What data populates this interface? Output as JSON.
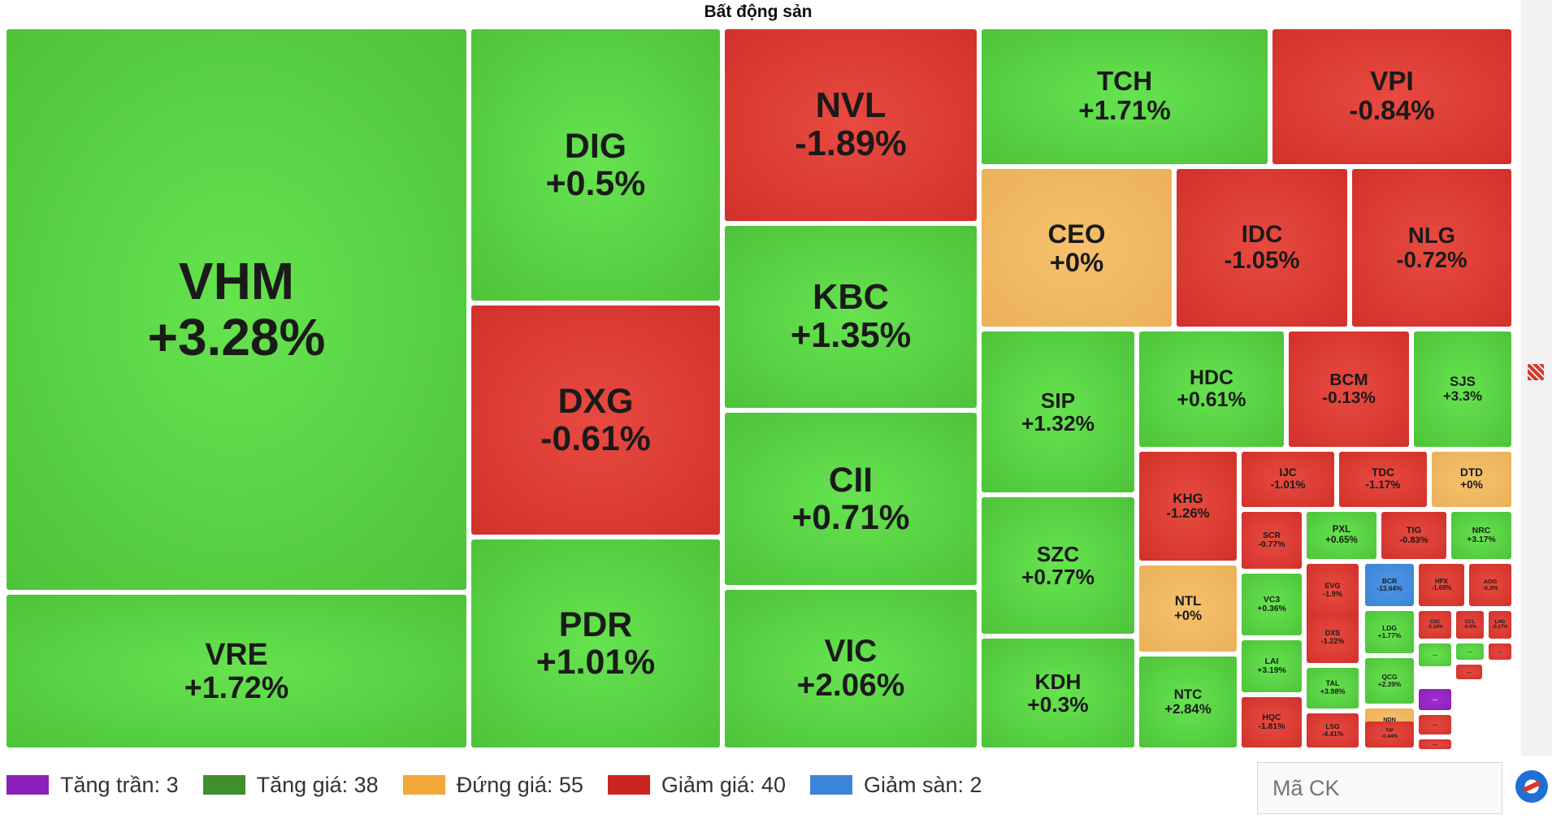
{
  "chart_data": {
    "type": "treemap",
    "title": "Bất động sản",
    "series": [
      {
        "symbol": "VHM",
        "change": "+3.28%",
        "status": "up"
      },
      {
        "symbol": "VRE",
        "change": "+1.72%",
        "status": "up"
      },
      {
        "symbol": "DIG",
        "change": "+0.5%",
        "status": "up"
      },
      {
        "symbol": "DXG",
        "change": "-0.61%",
        "status": "down"
      },
      {
        "symbol": "PDR",
        "change": "+1.01%",
        "status": "up"
      },
      {
        "symbol": "NVL",
        "change": "-1.89%",
        "status": "down"
      },
      {
        "symbol": "KBC",
        "change": "+1.35%",
        "status": "up"
      },
      {
        "symbol": "CII",
        "change": "+0.71%",
        "status": "up"
      },
      {
        "symbol": "VIC",
        "change": "+2.06%",
        "status": "up"
      },
      {
        "symbol": "TCH",
        "change": "+1.71%",
        "status": "up"
      },
      {
        "symbol": "VPI",
        "change": "-0.84%",
        "status": "down"
      },
      {
        "symbol": "CEO",
        "change": "+0%",
        "status": "flat"
      },
      {
        "symbol": "IDC",
        "change": "-1.05%",
        "status": "down"
      },
      {
        "symbol": "NLG",
        "change": "-0.72%",
        "status": "down"
      },
      {
        "symbol": "SIP",
        "change": "+1.32%",
        "status": "up"
      },
      {
        "symbol": "SZC",
        "change": "+0.77%",
        "status": "up"
      },
      {
        "symbol": "KDH",
        "change": "+0.3%",
        "status": "up"
      },
      {
        "symbol": "HDC",
        "change": "+0.61%",
        "status": "up"
      },
      {
        "symbol": "BCM",
        "change": "-0.13%",
        "status": "down"
      },
      {
        "symbol": "SJS",
        "change": "+3.3%",
        "status": "up"
      },
      {
        "symbol": "KHG",
        "change": "-1.26%",
        "status": "down"
      },
      {
        "symbol": "NTL",
        "change": "+0%",
        "status": "flat"
      },
      {
        "symbol": "NTC",
        "change": "+2.84%",
        "status": "up"
      },
      {
        "symbol": "IJC",
        "change": "-1.01%",
        "status": "down"
      },
      {
        "symbol": "TDC",
        "change": "-1.17%",
        "status": "down"
      },
      {
        "symbol": "DTD",
        "change": "+0%",
        "status": "flat"
      },
      {
        "symbol": "SCR",
        "change": "-0.77%",
        "status": "down"
      },
      {
        "symbol": "PXL",
        "change": "+0.65%",
        "status": "up"
      },
      {
        "symbol": "TIG",
        "change": "-0.83%",
        "status": "down"
      },
      {
        "symbol": "NRC",
        "change": "+3.17%",
        "status": "up"
      },
      {
        "symbol": "VC3",
        "change": "+0.36%",
        "status": "up"
      },
      {
        "symbol": "EVG",
        "change": "-1.9%",
        "status": "down"
      },
      {
        "symbol": "BCR",
        "change": "-13.64%",
        "status": "floor"
      },
      {
        "symbol": "HPX",
        "change": "-1.69%",
        "status": "down"
      },
      {
        "symbol": "AGG",
        "change": "-0.3%",
        "status": "down"
      },
      {
        "symbol": "LAI",
        "change": "+3.19%",
        "status": "up"
      },
      {
        "symbol": "DXS",
        "change": "-1.22%",
        "status": "down"
      },
      {
        "symbol": "LDG",
        "change": "+1.77%",
        "status": "up"
      },
      {
        "symbol": "CDC",
        "change": "-3.16%",
        "status": "down"
      },
      {
        "symbol": "CCL",
        "change": "-0.6%",
        "status": "down"
      },
      {
        "symbol": "LHG",
        "change": "-0.27%",
        "status": "down"
      },
      {
        "symbol": "HQC",
        "change": "-1.81%",
        "status": "down"
      },
      {
        "symbol": "TAL",
        "change": "+3.98%",
        "status": "up"
      },
      {
        "symbol": "QCG",
        "change": "+2.39%",
        "status": "up"
      },
      {
        "symbol": "NDN",
        "change": "+0%",
        "status": "flat"
      },
      {
        "symbol": "LSG",
        "change": "-4.41%",
        "status": "down"
      },
      {
        "symbol": "TIP",
        "change": "-0.44%",
        "status": "down"
      }
    ],
    "small_cells": [
      {
        "symbol": "...",
        "status": "up"
      },
      {
        "symbol": "...",
        "status": "up"
      },
      {
        "symbol": "...",
        "status": "down"
      },
      {
        "symbol": "...",
        "status": "down"
      },
      {
        "symbol": "...",
        "status": "ceil"
      },
      {
        "symbol": "...",
        "status": "down"
      },
      {
        "symbol": "...",
        "status": "down"
      }
    ],
    "legend": [
      {
        "label": "Tăng trần: 3",
        "color": "#8a1fba"
      },
      {
        "label": "Tăng giá: 38",
        "color": "#3f8f2f"
      },
      {
        "label": "Đứng giá: 55",
        "color": "#f2a83a"
      },
      {
        "label": "Giảm giá: 40",
        "color": "#c8261f"
      },
      {
        "label": "Giảm sàn: 2",
        "color": "#3c84d8"
      }
    ]
  },
  "search": {
    "placeholder": "Mã CK"
  }
}
